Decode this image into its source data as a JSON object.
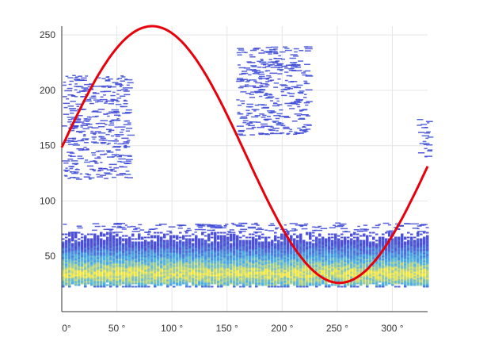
{
  "chart_data": {
    "type": "heatmap",
    "title": "",
    "xlabel": "",
    "ylabel": "",
    "xlim": [
      0,
      332
    ],
    "ylim": [
      0,
      258
    ],
    "grid": true,
    "x_ticks": [
      {
        "value": 0,
        "label": "0°"
      },
      {
        "value": 50,
        "label": "50 °"
      },
      {
        "value": 100,
        "label": "100 °"
      },
      {
        "value": 150,
        "label": "150 °"
      },
      {
        "value": 200,
        "label": "200 °"
      },
      {
        "value": 250,
        "label": "250 °"
      },
      {
        "value": 300,
        "label": "300 °"
      }
    ],
    "y_ticks": [
      {
        "value": 50,
        "label": "50"
      },
      {
        "value": 100,
        "label": "100"
      },
      {
        "value": 150,
        "label": "150"
      },
      {
        "value": 200,
        "label": "200"
      },
      {
        "value": 250,
        "label": "250"
      }
    ],
    "density_bands": [
      {
        "x_range": [
          0,
          332
        ],
        "y_range": [
          22,
          72
        ],
        "density": "high",
        "peak_y": 35
      },
      {
        "x_range": [
          0,
          60
        ],
        "y_range": [
          120,
          215
        ],
        "density": "low"
      },
      {
        "x_range": [
          158,
          222
        ],
        "y_range": [
          160,
          240
        ],
        "density": "low"
      },
      {
        "x_range": [
          322,
          332
        ],
        "y_range": [
          140,
          175
        ],
        "density": "low"
      }
    ],
    "overlay_curve": {
      "type": "line",
      "color": "#e8000b",
      "function": "sine",
      "mean": 142,
      "amplitude": 116,
      "period": 340,
      "phase_deg": -3,
      "x_range": [
        0,
        332
      ]
    }
  },
  "colors": {
    "low": "#3b3bd4",
    "mid": "#35a7e6",
    "high": "#f5e52e",
    "curve": "#e8000b",
    "grid": "#e6e6e6",
    "axis": "#333333"
  }
}
